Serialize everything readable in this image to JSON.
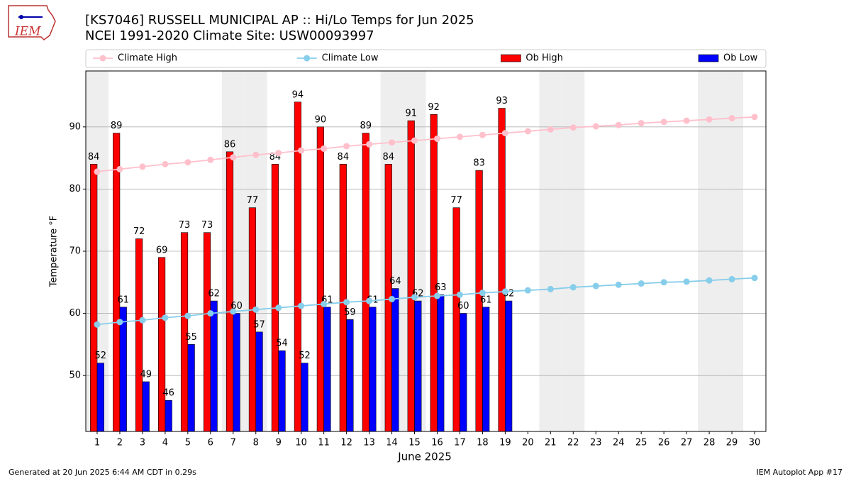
{
  "header": {
    "logo": "IEM"
  },
  "footer": {
    "left": "Generated at 20 Jun 2025 6:44 AM CDT in 0.29s",
    "right": "IEM Autoplot App #17"
  },
  "chart_data": {
    "type": "bar",
    "title": "[KS7046] RUSSELL MUNICIPAL AP :: Hi/Lo Temps for Jun 2025",
    "subtitle": "NCEI 1991-2020 Climate Site: USW00093997",
    "x_label": "June 2025",
    "y_label": "Temperature °F",
    "x": [
      1,
      2,
      3,
      4,
      5,
      6,
      7,
      8,
      9,
      10,
      11,
      12,
      13,
      14,
      15,
      16,
      17,
      18,
      19,
      20,
      21,
      22,
      23,
      24,
      25,
      26,
      27,
      28,
      29,
      30
    ],
    "xlim": [
      0.5,
      30.5
    ],
    "xticks": [
      1,
      2,
      3,
      4,
      5,
      6,
      7,
      8,
      9,
      10,
      11,
      12,
      13,
      14,
      15,
      16,
      17,
      18,
      19,
      20,
      21,
      22,
      23,
      24,
      25,
      26,
      27,
      28,
      29,
      30
    ],
    "ylim": [
      41,
      99
    ],
    "yticks": [
      50,
      60,
      70,
      80,
      90
    ],
    "grid": "y",
    "legend": "top",
    "shaded_days": [
      1,
      7,
      8,
      14,
      15,
      21,
      22,
      28,
      29
    ],
    "shade_color": "#eeeeee",
    "series": [
      {
        "name": "Climate High",
        "type": "line",
        "color": "#ffc0cb",
        "values": [
          82.8,
          83.2,
          83.6,
          84.0,
          84.3,
          84.7,
          85.1,
          85.5,
          85.8,
          86.2,
          86.5,
          86.9,
          87.2,
          87.5,
          87.8,
          88.1,
          88.4,
          88.7,
          89.0,
          89.3,
          89.6,
          89.9,
          90.1,
          90.3,
          90.6,
          90.8,
          91.0,
          91.2,
          91.4,
          91.6
        ]
      },
      {
        "name": "Climate Low",
        "type": "line",
        "color": "#87ceeb",
        "values": [
          58.2,
          58.6,
          58.9,
          59.3,
          59.6,
          60.0,
          60.3,
          60.6,
          60.9,
          61.2,
          61.5,
          61.8,
          62.0,
          62.3,
          62.6,
          62.8,
          63.0,
          63.3,
          63.5,
          63.7,
          63.9,
          64.2,
          64.4,
          64.6,
          64.8,
          65.0,
          65.1,
          65.3,
          65.5,
          65.7
        ]
      },
      {
        "name": "Ob High",
        "type": "bar",
        "color": "#ff0000",
        "values": [
          84,
          89,
          72,
          69,
          73,
          73,
          86,
          77,
          84,
          94,
          90,
          84,
          89,
          84,
          91,
          92,
          77,
          83,
          93,
          null,
          null,
          null,
          null,
          null,
          null,
          null,
          null,
          null,
          null,
          null
        ]
      },
      {
        "name": "Ob Low",
        "type": "bar",
        "color": "#0000ff",
        "values": [
          52,
          61,
          49,
          46,
          55,
          62,
          60,
          57,
          54,
          52,
          61,
          59,
          61,
          64,
          62,
          63,
          60,
          61,
          62,
          null,
          null,
          null,
          null,
          null,
          null,
          null,
          null,
          null,
          null,
          null
        ]
      }
    ]
  }
}
